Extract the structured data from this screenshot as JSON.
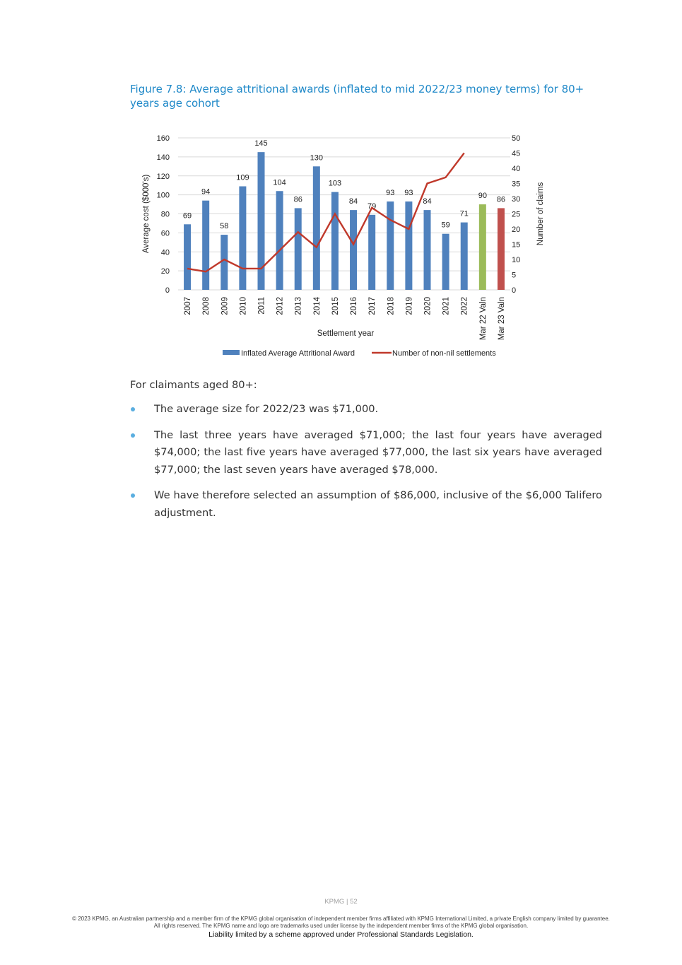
{
  "figure_title": "Figure 7.8: Average attritional awards (inflated to mid 2022/23 money terms) for 80+ years age cohort",
  "chart_data": {
    "type": "bar",
    "categories": [
      "2007",
      "2008",
      "2009",
      "2010",
      "2011",
      "2012",
      "2013",
      "2014",
      "2015",
      "2016",
      "2017",
      "2018",
      "2019",
      "2020",
      "2021",
      "2022",
      "Mar 22 Valn",
      "Mar 23 Valn"
    ],
    "series": [
      {
        "name": "Inflated Average Attritional Award",
        "type": "bar",
        "axis": "left",
        "color": "#4f81bd",
        "values": [
          69,
          94,
          58,
          109,
          145,
          104,
          86,
          130,
          103,
          84,
          79,
          93,
          93,
          84,
          59,
          71,
          90,
          86
        ],
        "bar_colors": [
          "#4f81bd",
          "#4f81bd",
          "#4f81bd",
          "#4f81bd",
          "#4f81bd",
          "#4f81bd",
          "#4f81bd",
          "#4f81bd",
          "#4f81bd",
          "#4f81bd",
          "#4f81bd",
          "#4f81bd",
          "#4f81bd",
          "#4f81bd",
          "#4f81bd",
          "#4f81bd",
          "#9bbb59",
          "#c0504d"
        ]
      },
      {
        "name": "Number of non-nil settlements",
        "type": "line",
        "axis": "right",
        "color": "#c0392b",
        "values": [
          7,
          6,
          10,
          7,
          7,
          13,
          19,
          14,
          25,
          15,
          27,
          23,
          20,
          35,
          37,
          45,
          null,
          null
        ]
      }
    ],
    "xlabel": "Settlement year",
    "ylabel": "Average cost ($000's)",
    "y2label": "Number of claims",
    "ylim": [
      0,
      160
    ],
    "y2lim": [
      0,
      50
    ],
    "yticks": [
      0,
      20,
      40,
      60,
      80,
      100,
      120,
      140,
      160
    ],
    "y2ticks": [
      0,
      5,
      10,
      15,
      20,
      25,
      30,
      35,
      40,
      45,
      50
    ],
    "grid": true,
    "legend_position": "bottom"
  },
  "intro_text": "For claimants aged 80+:",
  "bullets": [
    "The average size for 2022/23 was $71,000.",
    "The last three years have averaged $71,000; the last four years have averaged $74,000; the last five years have averaged $77,000, the last six years have averaged $77,000; the last seven years have averaged $78,000.",
    "We have therefore selected an assumption of $86,000, inclusive of the $6,000 Talifero adjustment."
  ],
  "footer": {
    "page": "KPMG | 52",
    "copyright": "© 2023 KPMG, an Australian partnership and a member firm of the KPMG global organisation of independent member firms affiliated with KPMG International Limited, a private English company limited by guarantee. All rights reserved. The KPMG name and logo are trademarks used under license by the independent member firms of the KPMG global organisation.",
    "liability": "Liability limited by a scheme approved under Professional Standards Legislation."
  }
}
